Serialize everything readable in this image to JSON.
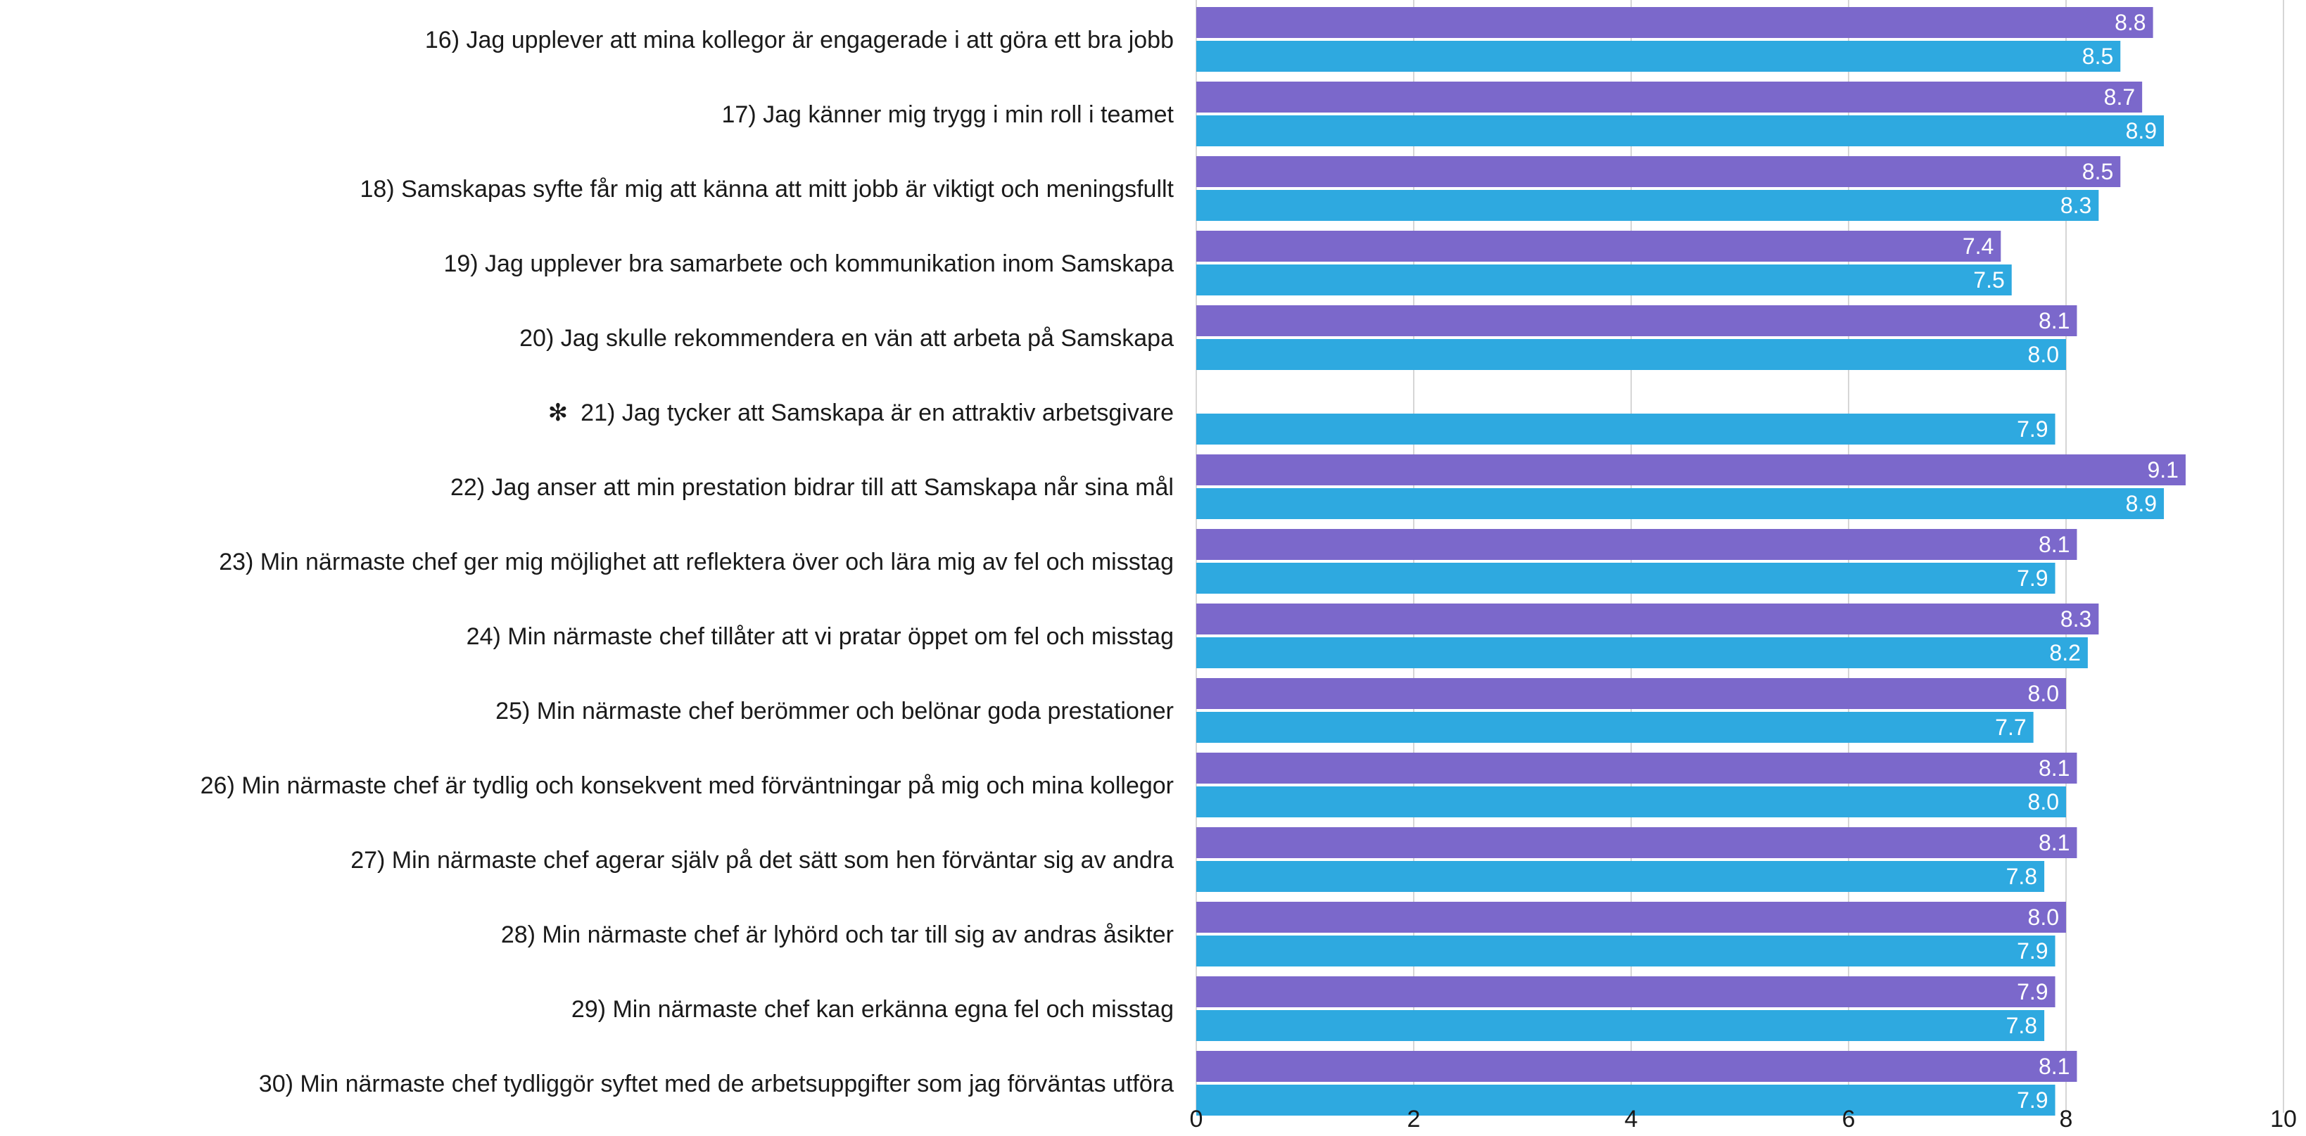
{
  "chart_data": {
    "type": "bar",
    "orientation": "horizontal",
    "xlim": [
      0,
      10
    ],
    "ticks": [
      "0",
      "2",
      "4",
      "6",
      "8",
      "10"
    ],
    "grid": true,
    "categories": [
      "16) Jag upplever att mina kollegor är engagerade i att göra ett bra jobb",
      "17) Jag känner mig trygg i min roll i teamet",
      "18) Samskapas syfte får mig att känna att mitt jobb är viktigt och meningsfullt",
      "19) Jag upplever bra samarbete och kommunikation inom Samskapa",
      "20) Jag skulle rekommendera en vän att arbeta på Samskapa",
      "21) Jag tycker att Samskapa är en attraktiv arbetsgivare",
      "22) Jag anser att min prestation bidrar till att Samskapa når sina mål",
      "23) Min närmaste chef ger mig möjlighet att reflektera över och lära mig av fel och misstag",
      "24) Min närmaste chef tillåter att vi pratar öppet om fel och misstag",
      "25) Min närmaste chef berömmer och belönar goda prestationer",
      "26) Min närmaste chef är tydlig och konsekvent med förväntningar på mig och mina kollegor",
      "27) Min närmaste chef agerar själv på det sätt som hen förväntar sig av andra",
      "28) Min närmaste chef är lyhörd och tar till sig av andras åsikter",
      "29) Min närmaste chef kan erkänna egna fel och misstag",
      "30) Min närmaste chef tydliggör syftet med de arbetsuppgifter som jag förväntas utföra"
    ],
    "marker": "✻",
    "marked_category_index": 5,
    "series": [
      {
        "color": "#7b68cb",
        "values": [
          8.8,
          8.7,
          8.5,
          7.4,
          8.1,
          null,
          9.1,
          8.1,
          8.3,
          8.0,
          8.1,
          8.1,
          8.0,
          7.9,
          8.1
        ]
      },
      {
        "color": "#2ea9e0",
        "values": [
          8.5,
          8.9,
          8.3,
          7.5,
          8.0,
          7.9,
          8.9,
          7.9,
          8.2,
          7.7,
          8.0,
          7.8,
          7.9,
          7.8,
          7.9
        ]
      }
    ]
  }
}
